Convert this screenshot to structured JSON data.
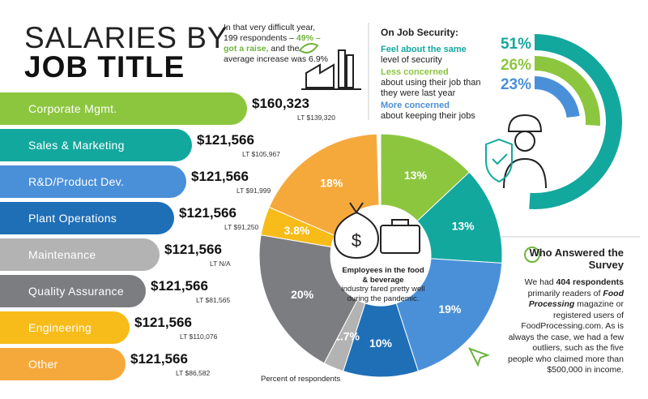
{
  "title": {
    "line1": "SALARIES BY",
    "line2": "JOB TITLE"
  },
  "intro": {
    "text1": "In that very difficult year, 199 respondents –",
    "highlight": "49% – got a raise,",
    "text2": "and the average increase was 6.9%"
  },
  "salaries": [
    {
      "title": "Corporate Mgmt.",
      "salary": "$160,323",
      "lt": "LT $139,320"
    },
    {
      "title": "Sales & Marketing",
      "salary": "$121,566",
      "lt": "LT $105,967"
    },
    {
      "title": "R&D/Product Dev.",
      "salary": "$121,566",
      "lt": "LT $91,999"
    },
    {
      "title": "Plant Operations",
      "salary": "$121,566",
      "lt": "LT $91,250"
    },
    {
      "title": "Maintenance",
      "salary": "$121,566",
      "lt": "LT N/A"
    },
    {
      "title": "Quality Assurance",
      "salary": "$121,566",
      "lt": "LT $81,565"
    },
    {
      "title": "Engineering",
      "salary": "$121,566",
      "lt": "LT $110,076"
    },
    {
      "title": "Other",
      "salary": "$121,566",
      "lt": "LT $86,582"
    }
  ],
  "chart_data": [
    {
      "type": "pie",
      "title": "Percent of respondents",
      "values": [
        13,
        13,
        19,
        10,
        2.7,
        20,
        3.8,
        18
      ],
      "value_labels": [
        "13%",
        "13%",
        "19%",
        "10%",
        "2.7%",
        "20%",
        "3.8%",
        "18%"
      ],
      "colors": [
        "#8cc63f",
        "#13a89e",
        "#4a90d9",
        "#1f6fb7",
        "#b3b3b3",
        "#7c7d80",
        "#f7bc1a",
        "#f6a93b"
      ],
      "center_text": {
        "bold": "Employees in the food & beverage",
        "rest": "industry fared pretty well during the pandemic."
      }
    },
    {
      "type": "radial-bar",
      "title": "On Job Security:",
      "categories": [
        "Feel about the same",
        "Less concerned",
        "More concerned"
      ],
      "descriptions": [
        "level of security",
        "about using their job than they were last year",
        "about keeping their jobs"
      ],
      "values": [
        51,
        26,
        23
      ],
      "value_labels": [
        "51%",
        "26%",
        "23%"
      ],
      "colors": [
        "#13a89e",
        "#8cc63f",
        "#4a90d9"
      ]
    }
  ],
  "survey": {
    "title": "Who Answered the Survey",
    "body": [
      "We had ",
      "404 respondents",
      " primarily readers of ",
      "Food Processing",
      " magazine or registered users of FoodProcessing.com. As is always the case, we had a few outliers, such as the five people who claimed more than $500,000 in income."
    ]
  }
}
